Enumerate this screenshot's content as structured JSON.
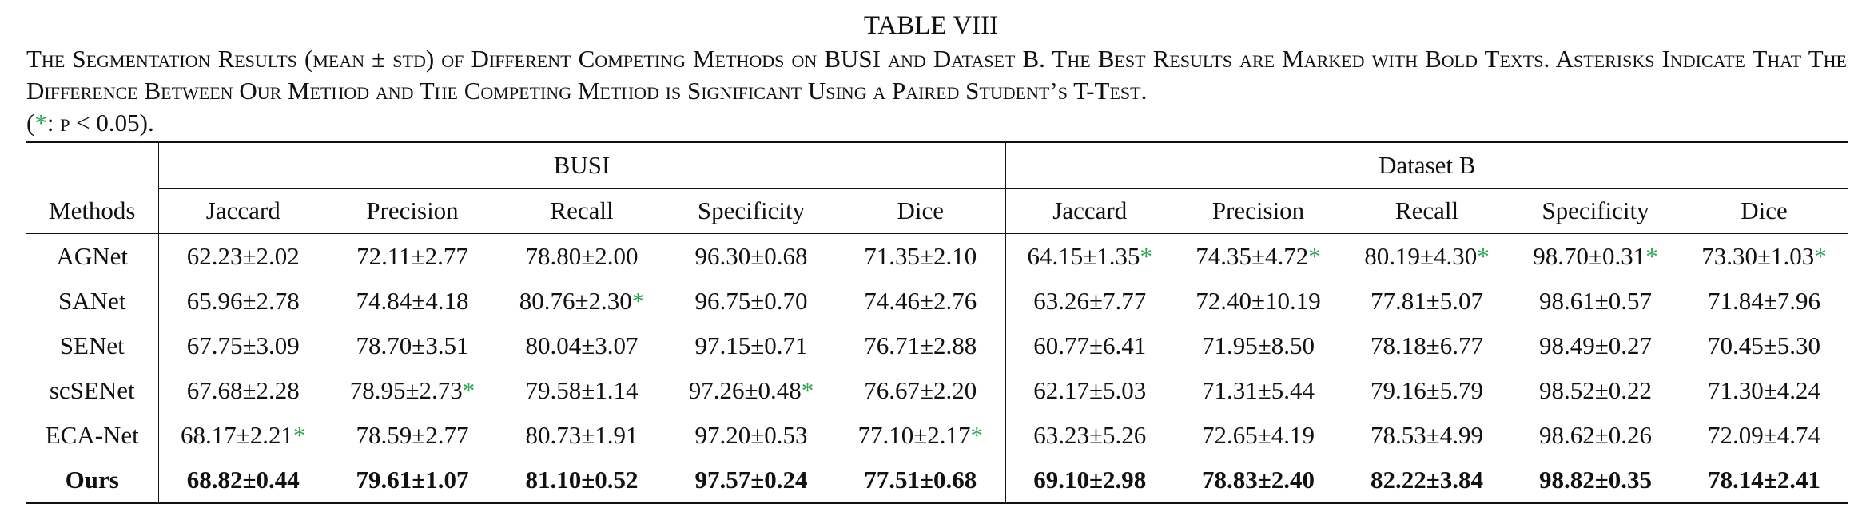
{
  "title": "TABLE VIII",
  "caption": "The Segmentation Results (mean ± std) of Different Competing Methods on BUSI and Dataset B. The Best Results are Marked with Bold Texts. Asterisks Indicate That The Difference Between Our Method and The Competing Method is Significant Using a Paired Student’s T-Test.",
  "caption_note": {
    "open": "(",
    "star": "*",
    "rest": ": p < 0.05)."
  },
  "table": {
    "groups": [
      "BUSI",
      "Dataset B"
    ],
    "columns": [
      "Methods",
      "Jaccard",
      "Precision",
      "Recall",
      "Specificity",
      "Dice",
      "Jaccard",
      "Precision",
      "Recall",
      "Specificity",
      "Dice"
    ],
    "rows": [
      {
        "cells": [
          "AGNet",
          "62.23±2.02",
          "72.11±2.77",
          "78.80±2.00",
          "96.30±0.68",
          "71.35±2.10",
          {
            "text": "64.15±1.35",
            "star": "*"
          },
          {
            "text": "74.35±4.72",
            "star": "*"
          },
          {
            "text": "80.19±4.30",
            "star": "*"
          },
          {
            "text": "98.70±0.31",
            "star": "*"
          },
          {
            "text": "73.30±1.03",
            "star": "*"
          }
        ]
      },
      {
        "cells": [
          "SANet",
          "65.96±2.78",
          "74.84±4.18",
          {
            "text": "80.76±2.30",
            "star": "*"
          },
          "96.75±0.70",
          "74.46±2.76",
          "63.26±7.77",
          "72.40±10.19",
          "77.81±5.07",
          "98.61±0.57",
          "71.84±7.96"
        ]
      },
      {
        "cells": [
          "SENet",
          "67.75±3.09",
          "78.70±3.51",
          "80.04±3.07",
          "97.15±0.71",
          "76.71±2.88",
          "60.77±6.41",
          "71.95±8.50",
          "78.18±6.77",
          "98.49±0.27",
          "70.45±5.30"
        ]
      },
      {
        "cells": [
          "scSENet",
          "67.68±2.28",
          {
            "text": "78.95±2.73",
            "star": "*"
          },
          "79.58±1.14",
          {
            "text": "97.26±0.48",
            "star": "*"
          },
          "76.67±2.20",
          "62.17±5.03",
          "71.31±5.44",
          "79.16±5.79",
          "98.52±0.22",
          "71.30±4.24"
        ]
      },
      {
        "cells": [
          "ECA-Net",
          {
            "text": "68.17±2.21",
            "star": "*"
          },
          "78.59±2.77",
          "80.73±1.91",
          "97.20±0.53",
          {
            "text": "77.10±2.17",
            "star": "*"
          },
          "63.23±5.26",
          "72.65±4.19",
          "78.53±4.99",
          "98.62±0.26",
          "72.09±4.74"
        ]
      },
      {
        "cells": [
          "Ours",
          "68.82±0.44",
          "79.61±1.07",
          "81.10±0.52",
          "97.57±0.24",
          "77.51±0.68",
          "69.10±2.98",
          "78.83±2.40",
          "82.22±3.84",
          "98.82±0.35",
          "78.14±2.41"
        ],
        "bold": true
      }
    ]
  }
}
